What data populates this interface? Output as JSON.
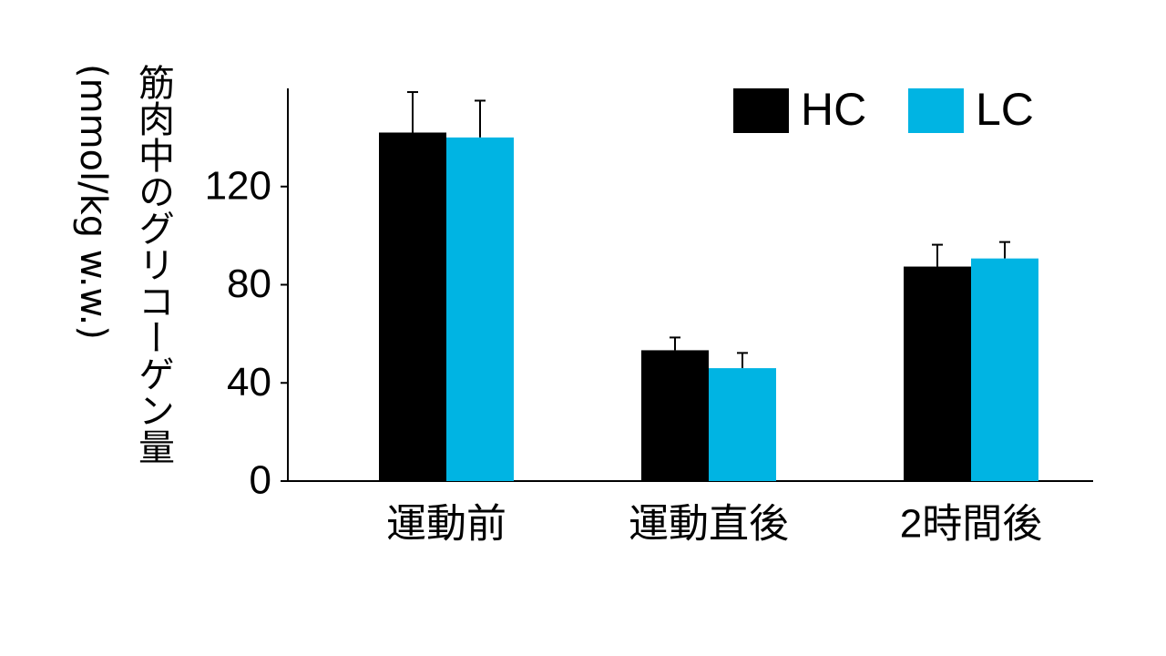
{
  "chart_data": {
    "type": "bar",
    "ylabel": "筋肉中のグリコーゲン量",
    "ylabel_unit": "(mmol/kg w.w.)",
    "categories": [
      "運動前",
      "運動直後",
      "2時間後"
    ],
    "series": [
      {
        "name": "HC",
        "color": "#000000",
        "values": [
          142,
          53.3,
          87.4
        ],
        "errors": [
          16.5,
          5.2,
          8.9
        ]
      },
      {
        "name": "LC",
        "color": "#00b4e3",
        "values": [
          140,
          46,
          90.7
        ],
        "errors": [
          15,
          6.2,
          6.7
        ]
      }
    ],
    "ylim": [
      0,
      160
    ],
    "yticks": [
      0,
      40,
      80,
      120
    ],
    "legend": "top-right"
  }
}
